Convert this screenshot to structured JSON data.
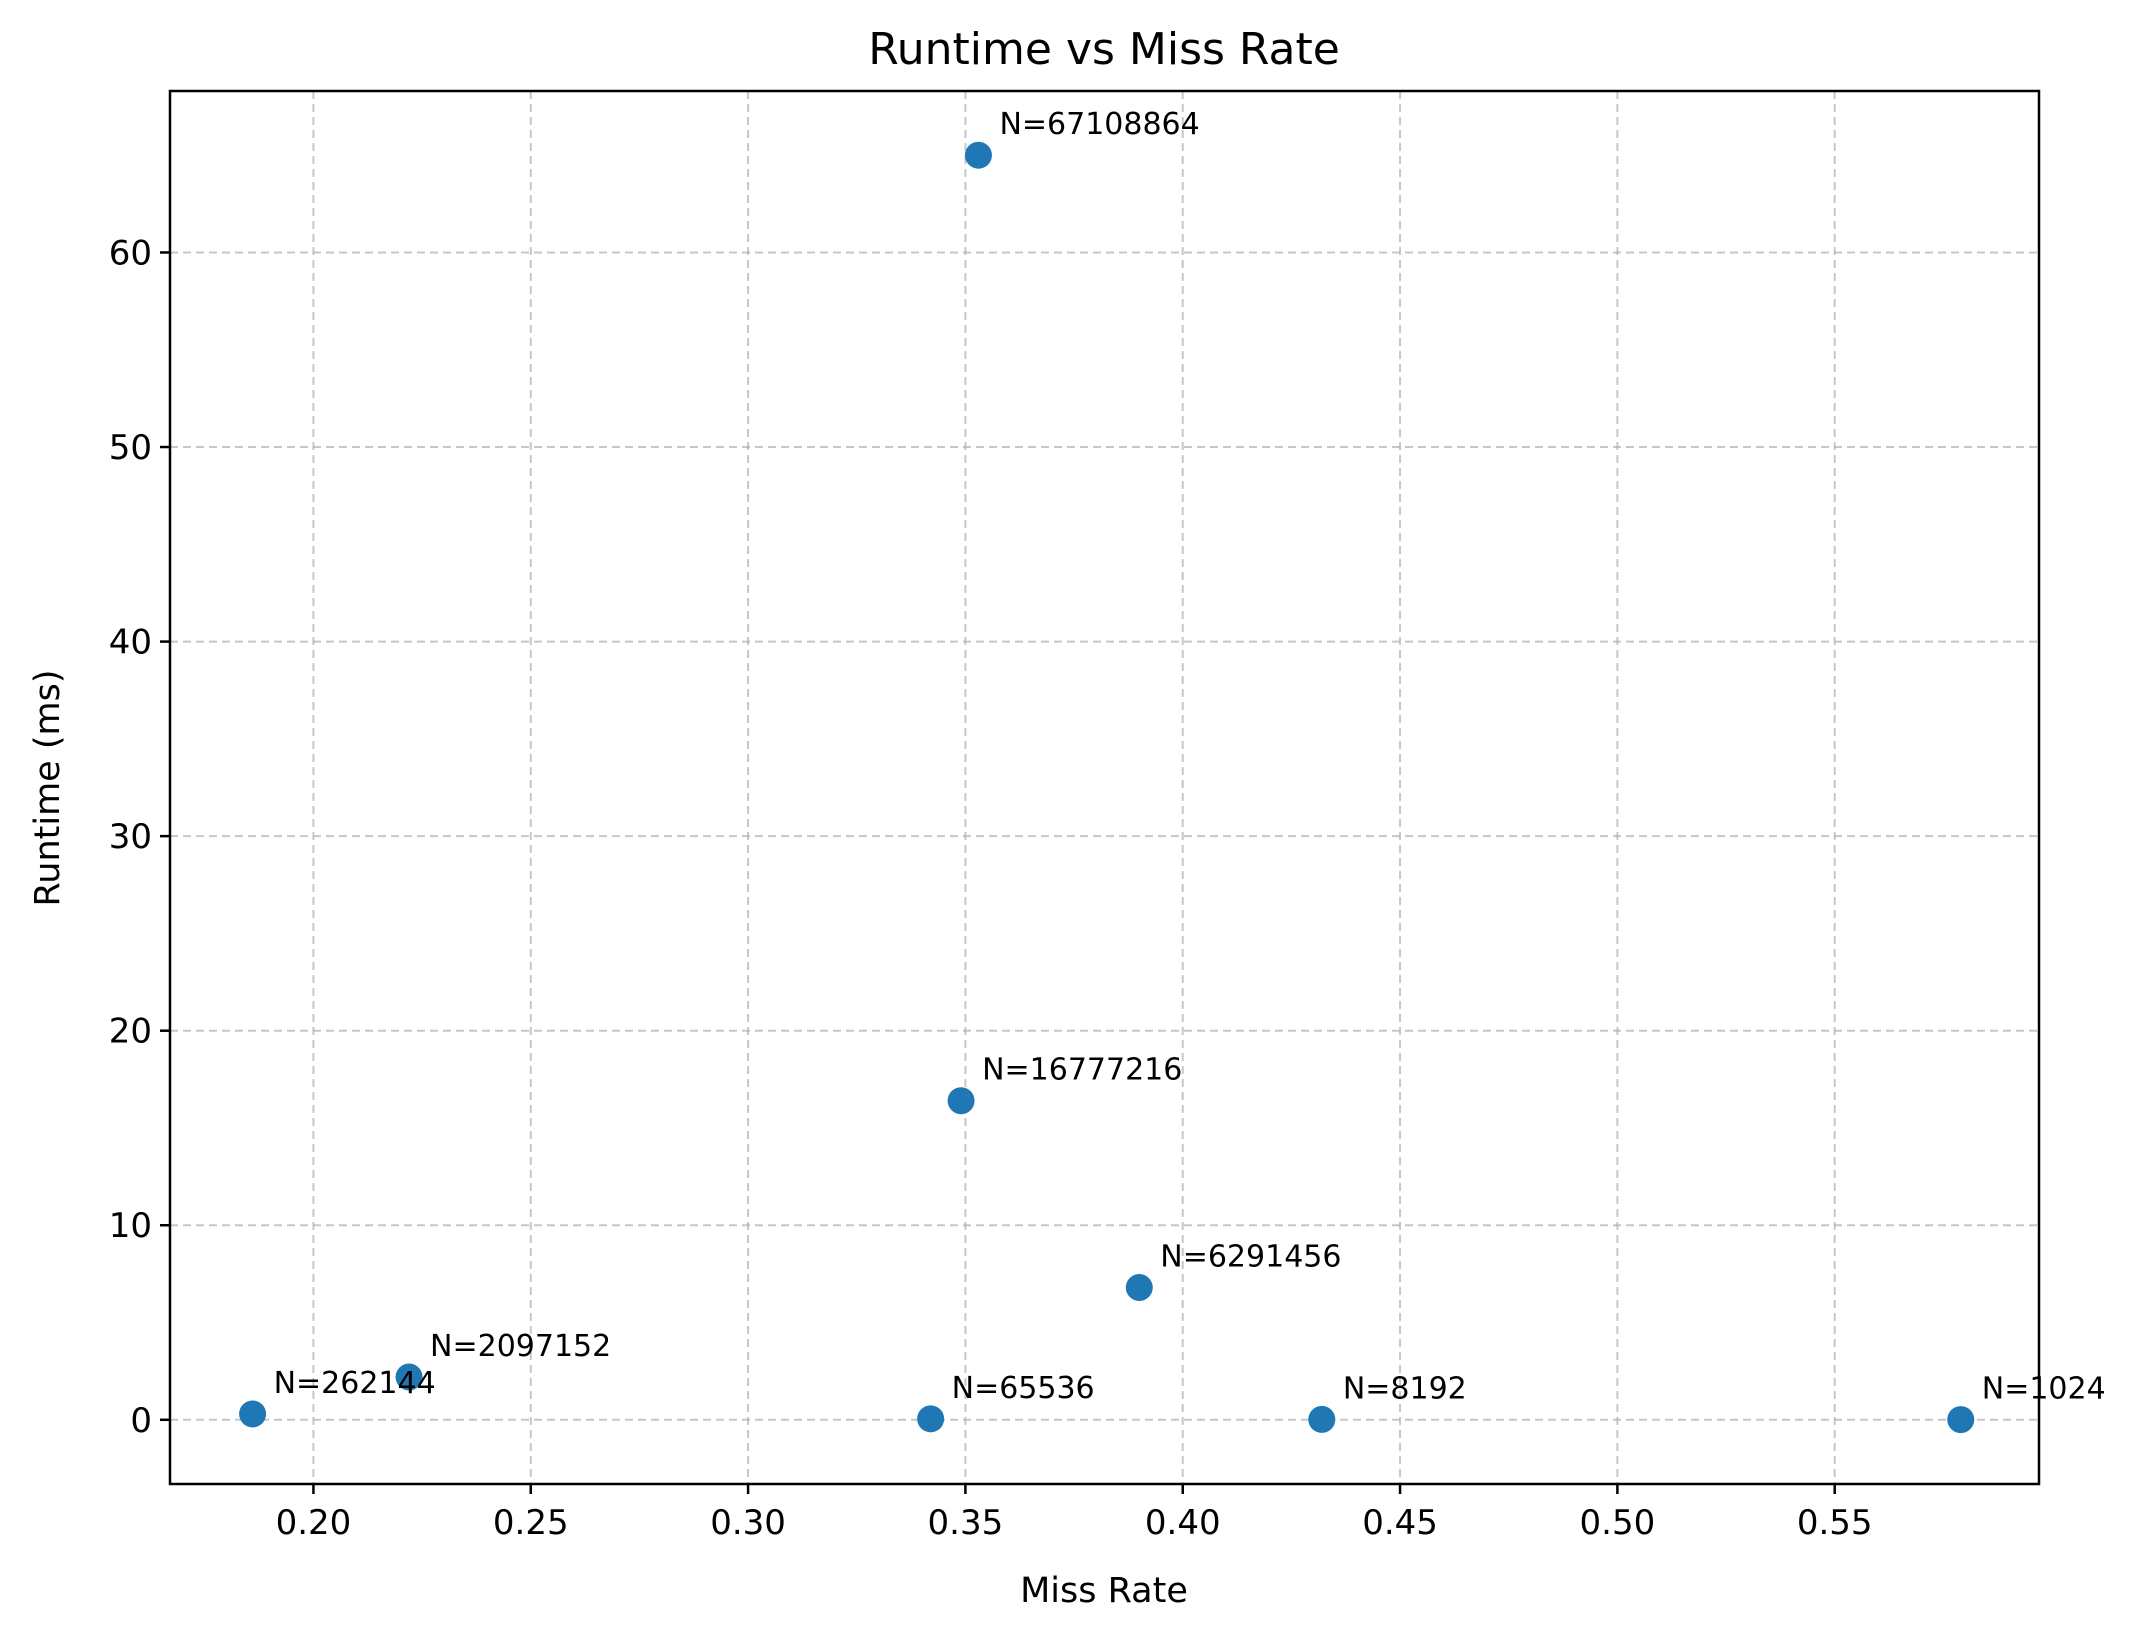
{
  "chart_data": {
    "type": "scatter",
    "title": "Runtime vs Miss Rate",
    "xlabel": "Miss Rate",
    "ylabel": "Runtime (ms)",
    "xlim": [
      0.167,
      0.597
    ],
    "ylim": [
      -3.3,
      68.3
    ],
    "xticks": [
      0.2,
      0.25,
      0.3,
      0.35,
      0.4,
      0.45,
      0.5,
      0.55
    ],
    "xtick_labels": [
      "0.20",
      "0.25",
      "0.30",
      "0.35",
      "0.40",
      "0.45",
      "0.50",
      "0.55"
    ],
    "yticks": [
      0,
      10,
      20,
      30,
      40,
      50,
      60
    ],
    "ytick_labels": [
      "0",
      "10",
      "20",
      "30",
      "40",
      "50",
      "60"
    ],
    "grid": true,
    "color": "#1f77b4",
    "points": [
      {
        "x": 0.579,
        "y": 0.01,
        "label": "N=1024"
      },
      {
        "x": 0.432,
        "y": 0.02,
        "label": "N=8192"
      },
      {
        "x": 0.342,
        "y": 0.05,
        "label": "N=65536"
      },
      {
        "x": 0.186,
        "y": 0.3,
        "label": "N=262144"
      },
      {
        "x": 0.222,
        "y": 2.2,
        "label": "N=2097152"
      },
      {
        "x": 0.39,
        "y": 6.8,
        "label": "N=6291456"
      },
      {
        "x": 0.349,
        "y": 16.4,
        "label": "N=16777216"
      },
      {
        "x": 0.353,
        "y": 65.0,
        "label": "N=67108864"
      }
    ]
  }
}
